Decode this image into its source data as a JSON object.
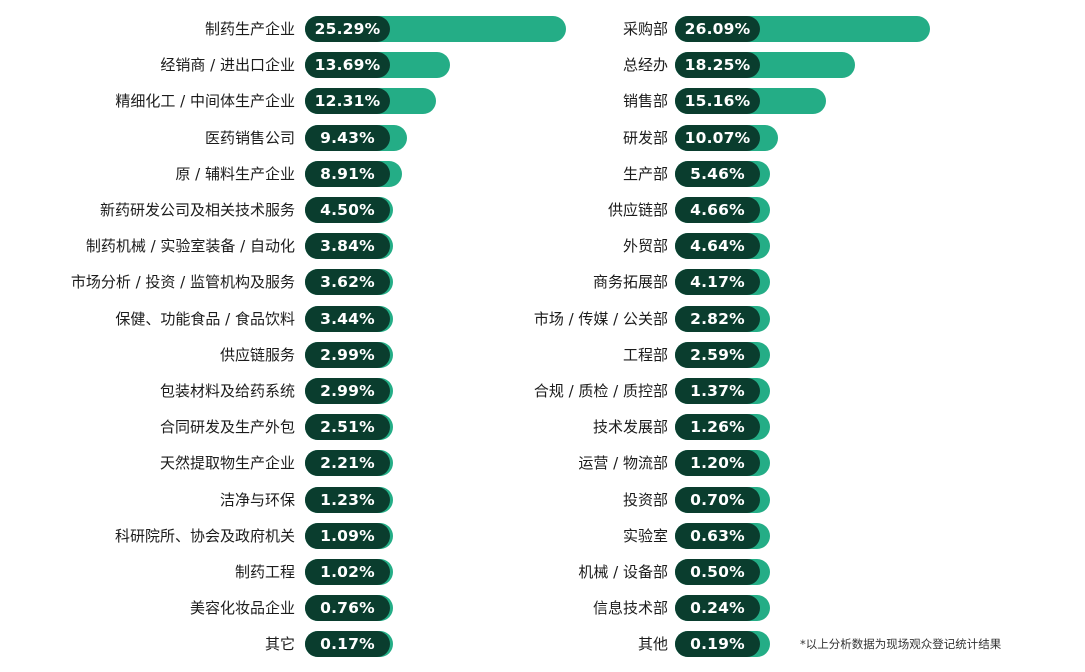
{
  "colors": {
    "bar": "#24ad86",
    "pill": "#0a3d2e",
    "text": "#1c1c1c"
  },
  "chart_data": [
    {
      "type": "bar",
      "orientation": "horizontal",
      "categories": [
        "制药生产企业",
        "经销商 / 进出口企业",
        "精细化工 / 中间体生产企业",
        "医药销售公司",
        "原 / 辅料生产企业",
        "新药研发公司及相关技术服务",
        "制药机械 / 实验室装备 / 自动化",
        "市场分析 / 投资 / 监管机构及服务",
        "保健、功能食品 / 食品饮料",
        "供应链服务",
        "包装材料及给药系统",
        "合同研发及生产外包",
        "天然提取物生产企业",
        "洁净与环保",
        "科研院所、协会及政府机关",
        "制药工程",
        "美容化妆品企业",
        "其它"
      ],
      "values": [
        25.29,
        13.69,
        12.31,
        9.43,
        8.91,
        4.5,
        3.84,
        3.62,
        3.44,
        2.99,
        2.99,
        2.51,
        2.21,
        1.23,
        1.09,
        1.02,
        0.76,
        0.17
      ],
      "value_labels": [
        "25.29%",
        "13.69%",
        "12.31%",
        "9.43%",
        "8.91%",
        "4.50%",
        "3.84%",
        "3.62%",
        "3.44%",
        "2.99%",
        "2.99%",
        "2.51%",
        "2.21%",
        "1.23%",
        "1.09%",
        "1.02%",
        "0.76%",
        "0.17%"
      ],
      "unit": "%"
    },
    {
      "type": "bar",
      "orientation": "horizontal",
      "categories": [
        "采购部",
        "总经办",
        "销售部",
        "研发部",
        "生产部",
        "供应链部",
        "外贸部",
        "商务拓展部",
        "市场 / 传媒 / 公关部",
        "工程部",
        "合规 / 质检 / 质控部",
        "技术发展部",
        "运营 / 物流部",
        "投资部",
        "实验室",
        "机械 / 设备部",
        "信息技术部",
        "其他"
      ],
      "values": [
        26.09,
        18.25,
        15.16,
        10.07,
        5.46,
        4.66,
        4.64,
        4.17,
        2.82,
        2.59,
        1.37,
        1.26,
        1.2,
        0.7,
        0.63,
        0.5,
        0.24,
        0.19
      ],
      "value_labels": [
        "26.09%",
        "18.25%",
        "15.16%",
        "10.07%",
        "5.46%",
        "4.66%",
        "4.64%",
        "4.17%",
        "2.82%",
        "2.59%",
        "1.37%",
        "1.26%",
        "1.20%",
        "0.70%",
        "0.63%",
        "0.50%",
        "0.24%",
        "0.19%"
      ],
      "unit": "%"
    }
  ],
  "footnote": "*以上分析数据为现场观众登记统计结果"
}
